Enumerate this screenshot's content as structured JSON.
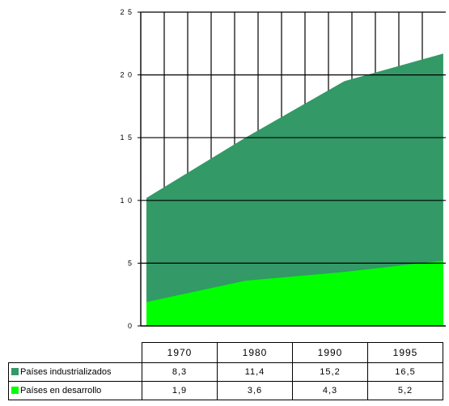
{
  "chart_data": {
    "type": "area",
    "stacked": true,
    "x": [
      1970,
      1980,
      1990,
      1995
    ],
    "xlabels": [
      "1970",
      "1980",
      "1990",
      "1995"
    ],
    "series": [
      {
        "name": "Países en desarrollo",
        "values": [
          1.9,
          3.6,
          4.3,
          5.2
        ],
        "color": "#00ff00"
      },
      {
        "name": "Países industrializados",
        "values": [
          8.3,
          11.4,
          15.2,
          16.5
        ],
        "color": "#339966"
      }
    ],
    "ylim": [
      0,
      25
    ],
    "yticks": [
      0,
      5,
      10,
      15,
      20,
      25
    ],
    "yticklabels": [
      "0",
      "5",
      "1 0",
      "1 5",
      "2 0",
      "2 5"
    ],
    "grid": true,
    "title": "",
    "xlabel": "",
    "ylabel": ""
  },
  "table": {
    "years": [
      "1970",
      "1980",
      "1990",
      "1995"
    ],
    "rows": [
      {
        "label": "Países industrializados",
        "color": "#339966",
        "values": [
          "8,3",
          "11,4",
          "15,2",
          "16,5"
        ]
      },
      {
        "label": "Países en desarrollo",
        "color": "#00ff00",
        "values": [
          "1,9",
          "3,6",
          "4,3",
          "5,2"
        ]
      }
    ]
  }
}
